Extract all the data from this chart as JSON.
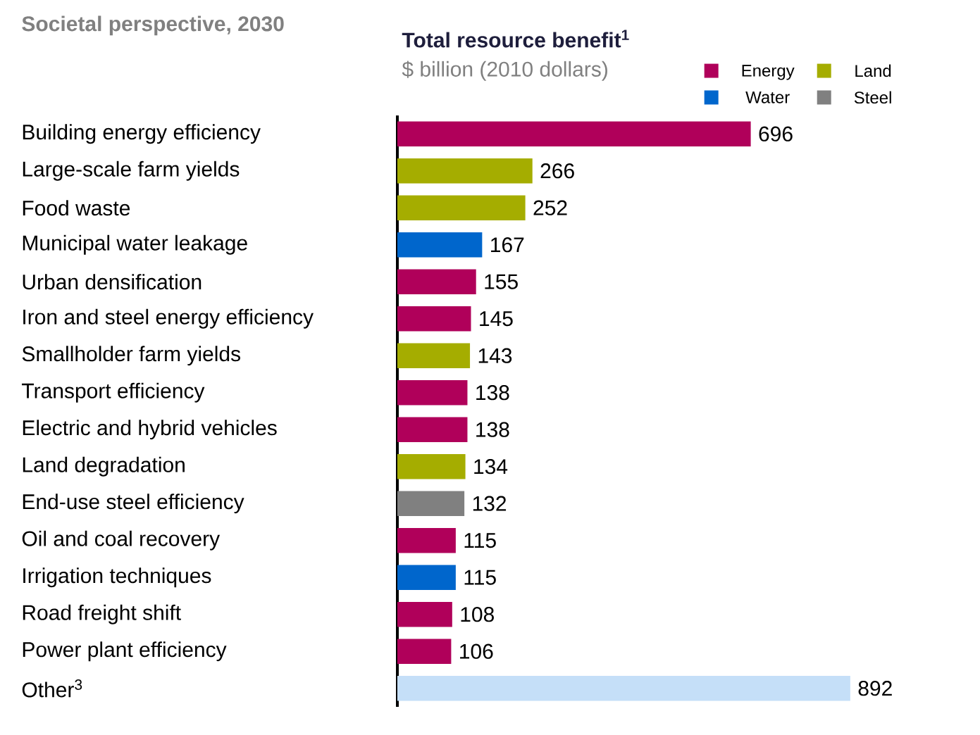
{
  "chart_data": {
    "type": "bar",
    "orientation": "horizontal",
    "title": "Societal perspective, 2030",
    "subtitle": "Total resource benefit$^{1}$",
    "xlabel": "$ billion (2010 dollars)",
    "categories": [
      "Building energy efficiency",
      "Large-scale farm yields",
      "Food waste",
      "Municipal water leakage",
      "Urban densification",
      "Iron and steel energy efficiency",
      "Smallholder farm yields",
      "Transport efficiency",
      "Electric and hybrid vehicles",
      "Land degradation",
      "End-use steel efficiency",
      "Oil and coal recovery",
      "Irrigation techniques",
      "Road freight shift",
      "Power plant efficiency",
      "Other$^{3}$"
    ],
    "series": [
      {
        "name": "Energy",
        "color": "#b0005a",
        "values": [
          696,
          null,
          null,
          null,
          155,
          145,
          null,
          138,
          138,
          null,
          null,
          115,
          null,
          108,
          106,
          null
        ]
      },
      {
        "name": "Land",
        "color": "#a5ad00",
        "values": [
          null,
          266,
          252,
          null,
          null,
          null,
          143,
          null,
          null,
          134,
          null,
          null,
          null,
          null,
          null,
          null
        ]
      },
      {
        "name": "Water",
        "color": "#0066cc",
        "values": [
          null,
          null,
          null,
          167,
          null,
          null,
          null,
          null,
          null,
          null,
          null,
          null,
          115,
          null,
          null,
          null
        ]
      },
      {
        "name": "Steel",
        "color": "#808080",
        "values": [
          null,
          null,
          null,
          null,
          null,
          null,
          null,
          null,
          null,
          null,
          132,
          null,
          null,
          null,
          null,
          null
        ]
      },
      {
        "color": "#c5dff8",
        "values": [
          null,
          null,
          null,
          null,
          null,
          null,
          null,
          null,
          null,
          null,
          null,
          null,
          null,
          null,
          null,
          892
        ]
      }
    ],
    "data_labels": true,
    "legend": "top right"
  }
}
